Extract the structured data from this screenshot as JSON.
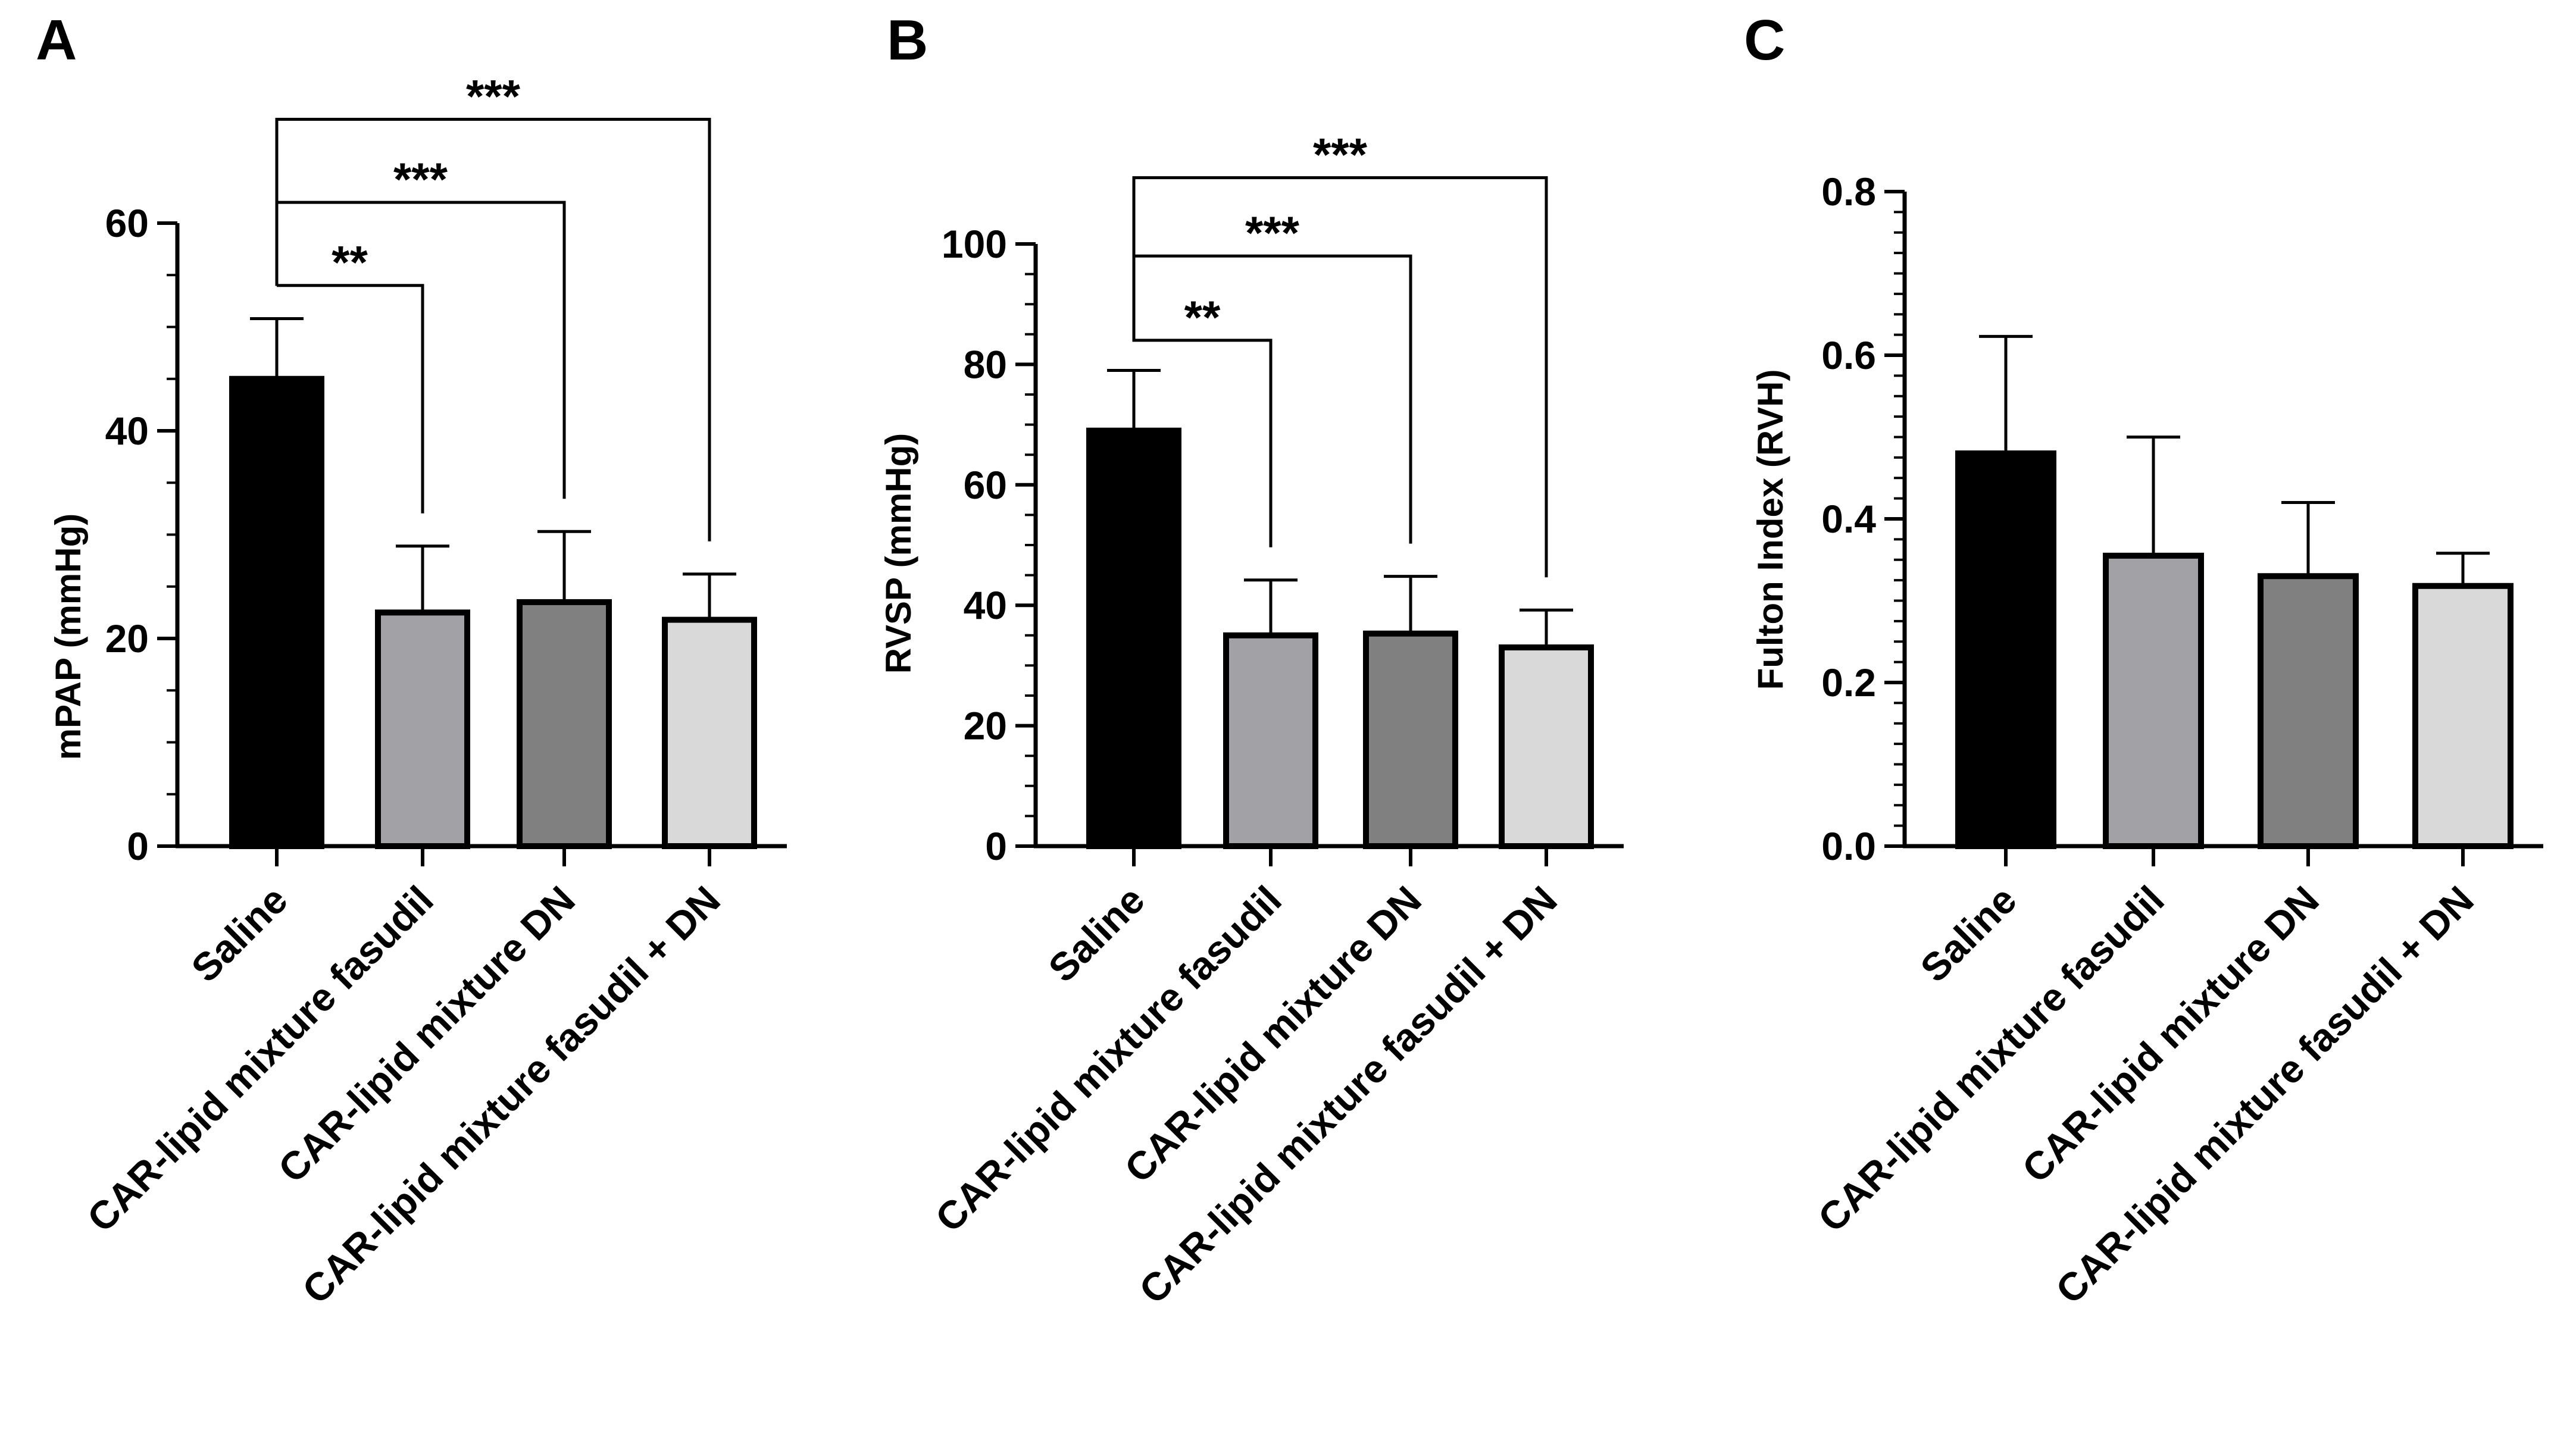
{
  "chart_data": [
    {
      "panel": "A",
      "type": "bar",
      "ylabel": "mPAP  (mmHg)",
      "ylim": [
        0,
        60
      ],
      "yticks": [
        0,
        20,
        40,
        60
      ],
      "minor_step": 5,
      "categories": [
        "Saline",
        "CAR-lipid mixture fasudil",
        "CAR-lipid mixture DN",
        "CAR-lipid mixture fasudil + DN"
      ],
      "values": [
        45.0,
        22.5,
        23.5,
        21.8
      ],
      "errors": [
        5.8,
        6.4,
        6.8,
        4.4
      ],
      "colors": [
        "#000000",
        "#a2a1a6",
        "#808080",
        "#d9d9d9"
      ],
      "significance": [
        {
          "from": 0,
          "to": 1,
          "label": "**",
          "level": 54
        },
        {
          "from": 0,
          "to": 2,
          "label": "***",
          "level": 62
        },
        {
          "from": 0,
          "to": 3,
          "label": "***",
          "level": 70
        }
      ]
    },
    {
      "panel": "B",
      "type": "bar",
      "ylabel": "RVSP (mmHg)",
      "ylim": [
        0,
        100
      ],
      "yticks": [
        0,
        20,
        40,
        60,
        80,
        100
      ],
      "minor_step": 5,
      "categories": [
        "Saline",
        "CAR-lipid mixture fasudil",
        "CAR-lipid mixture DN",
        "CAR-lipid mixture fasudil + DN"
      ],
      "values": [
        69.0,
        35.0,
        35.3,
        33.0
      ],
      "errors": [
        10.0,
        9.2,
        9.5,
        6.2
      ],
      "colors": [
        "#000000",
        "#a2a1a6",
        "#808080",
        "#d9d9d9"
      ],
      "significance": [
        {
          "from": 0,
          "to": 1,
          "label": "**",
          "level": 84
        },
        {
          "from": 0,
          "to": 2,
          "label": "***",
          "level": 98
        },
        {
          "from": 0,
          "to": 3,
          "label": "***",
          "level": 111
        }
      ]
    },
    {
      "panel": "C",
      "type": "bar",
      "ylabel": "Fulton  Index (RVH)",
      "ylim": [
        0,
        0.8
      ],
      "yticks": [
        0.0,
        0.2,
        0.4,
        0.6,
        0.8
      ],
      "minor_step": 0.025,
      "categories": [
        "Saline",
        "CAR-lipid mixture fasudil",
        "CAR-lipid mixture DN",
        "CAR-lipid mixture fasudil + DN"
      ],
      "values": [
        0.48,
        0.355,
        0.33,
        0.318
      ],
      "errors": [
        0.143,
        0.145,
        0.09,
        0.04
      ],
      "colors": [
        "#000000",
        "#a2a1a6",
        "#808080",
        "#d9d9d9"
      ],
      "significance": []
    }
  ]
}
